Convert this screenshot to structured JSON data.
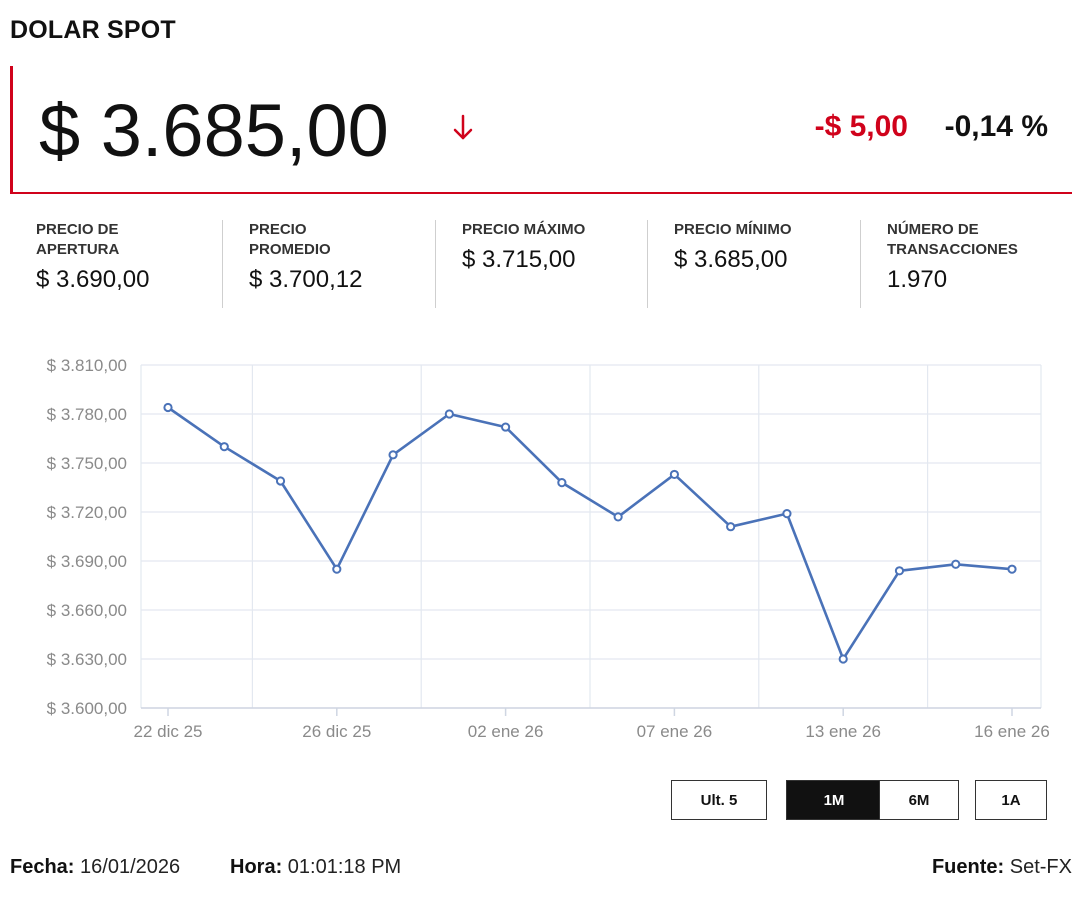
{
  "header": {
    "title": "DOLAR SPOT"
  },
  "price": {
    "value": "$ 3.685,00",
    "direction": "down",
    "change_abs": "-$ 5,00",
    "change_pct": "-0,14 %",
    "accent_color": "#d0021b"
  },
  "stats": [
    {
      "label": "PRECIO DE\nAPERTURA",
      "value": "$ 3.690,00"
    },
    {
      "label": "PRECIO\nPROMEDIO",
      "value": "$ 3.700,12"
    },
    {
      "label": "PRECIO MÁXIMO",
      "value": "$ 3.715,00"
    },
    {
      "label": "PRECIO MÍNIMO",
      "value": "$ 3.685,00"
    },
    {
      "label": "NÚMERO DE\nTRANSACCIONES",
      "value": "1.970"
    }
  ],
  "chart_data": {
    "type": "line",
    "title": "",
    "xlabel": "",
    "ylabel": "",
    "ylim": [
      3600,
      3810
    ],
    "y_ticks": [
      3600,
      3630,
      3660,
      3690,
      3720,
      3750,
      3780,
      3810
    ],
    "y_tick_labels": [
      "$ 3.600,00",
      "$ 3.630,00",
      "$ 3.660,00",
      "$ 3.690,00",
      "$ 3.720,00",
      "$ 3.750,00",
      "$ 3.780,00",
      "$ 3.810,00"
    ],
    "x_tick_labels": [
      "22 dic 25",
      "26 dic 25",
      "02 ene 26",
      "07 ene 26",
      "13 ene 26",
      "16 ene 26"
    ],
    "x_tick_at_point_index": [
      0,
      3,
      6,
      9,
      12,
      15
    ],
    "grid": true,
    "line_color": "#4a72b8",
    "series": [
      {
        "values": [
          3784,
          3760,
          3739,
          3685,
          3755,
          3780,
          3772,
          3738,
          3717,
          3743,
          3711,
          3719,
          3630,
          3684,
          3688,
          3685
        ]
      }
    ]
  },
  "controls": {
    "buttons": [
      {
        "label": "Ult. 5",
        "active": false
      },
      {
        "label": "1M",
        "active": true
      },
      {
        "label": "6M",
        "active": false
      },
      {
        "label": "1A",
        "active": false
      }
    ]
  },
  "footer": {
    "date_label": "Fecha:",
    "date_value": "16/01/2026",
    "time_label": "Hora:",
    "time_value": "01:01:18 PM",
    "source_label": "Fuente:",
    "source_value": "Set-FX"
  }
}
